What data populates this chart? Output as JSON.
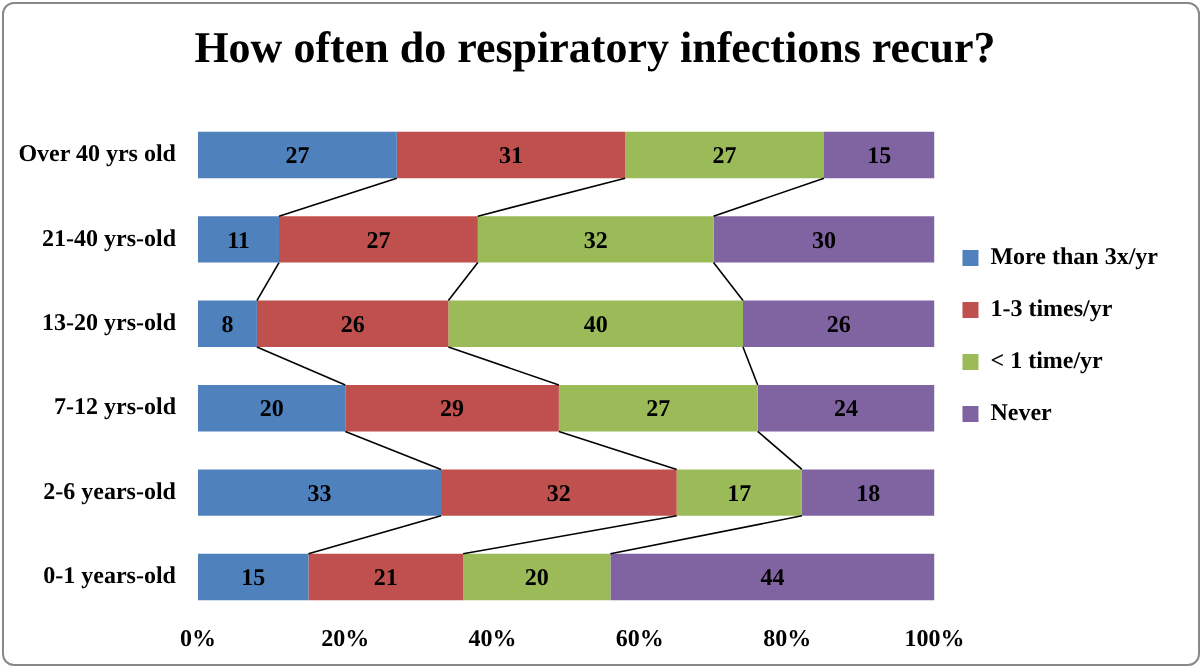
{
  "chart_data": {
    "type": "bar",
    "title": "How often do respiratory infections recur?",
    "orientation": "horizontal",
    "stacked": true,
    "categories": [
      "Over 40 yrs old",
      "21-40 yrs-old",
      "13-20 yrs-old",
      "7-12 yrs-old",
      "2-6 years-old",
      "0-1 years-old"
    ],
    "series": [
      {
        "name": "More than 3x/yr",
        "color": "#4f81bd",
        "values": [
          27,
          11,
          8,
          20,
          33,
          15
        ]
      },
      {
        "name": "1-3 times/yr",
        "color": "#c0504d",
        "values": [
          31,
          27,
          26,
          29,
          32,
          21
        ]
      },
      {
        "name": "< 1 time/yr",
        "color": "#9bbb59",
        "values": [
          27,
          32,
          40,
          27,
          17,
          20
        ]
      },
      {
        "name": "Never",
        "color": "#8064a2",
        "values": [
          15,
          30,
          26,
          24,
          18,
          44
        ]
      }
    ],
    "xlim": [
      0,
      100
    ],
    "xticks": [
      {
        "value": 0,
        "label": "0%"
      },
      {
        "value": 20,
        "label": "20%"
      },
      {
        "value": 40,
        "label": "40%"
      },
      {
        "value": 60,
        "label": "60%"
      },
      {
        "value": 80,
        "label": "80%"
      },
      {
        "value": 100,
        "label": "100%"
      }
    ],
    "data_labels": true,
    "legend": "right",
    "grid": false
  }
}
